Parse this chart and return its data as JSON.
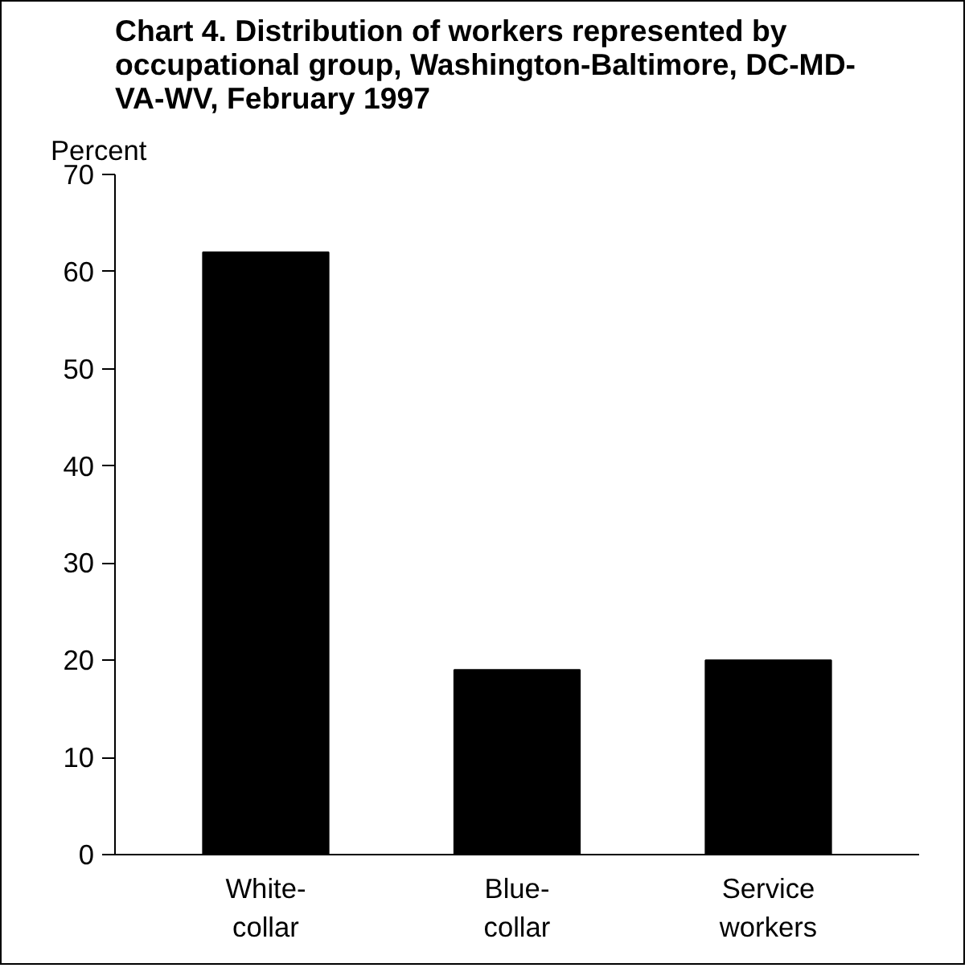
{
  "chart_data": {
    "type": "bar",
    "title": "Chart 4. Distribution of workers represented by occupational group, Washington-Baltimore, DC-MD-VA-WV, February 1997",
    "ylabel": "Percent",
    "categories": [
      "White-collar",
      "Blue-collar",
      "Service workers"
    ],
    "values": [
      62,
      19,
      20
    ],
    "color": "#000000",
    "ylim": [
      0,
      70
    ],
    "yticks": [
      0,
      10,
      20,
      30,
      40,
      50,
      60,
      70
    ],
    "grid": false
  }
}
